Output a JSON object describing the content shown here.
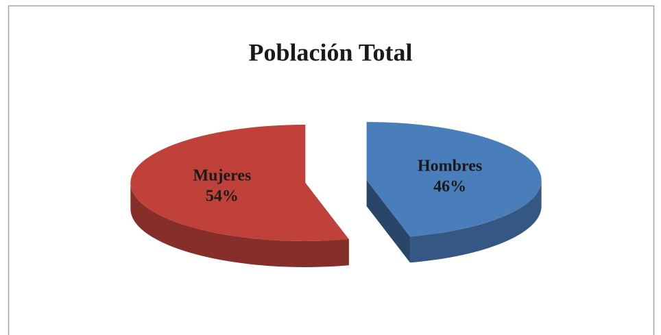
{
  "chart_data": {
    "type": "pie",
    "title": "Población Total",
    "categories": [
      "Hombres",
      "Mujeres"
    ],
    "values": [
      46,
      54
    ],
    "value_labels": [
      "46%",
      "54%"
    ],
    "colors": [
      "#4a7ebb",
      "#c0413a"
    ]
  }
}
